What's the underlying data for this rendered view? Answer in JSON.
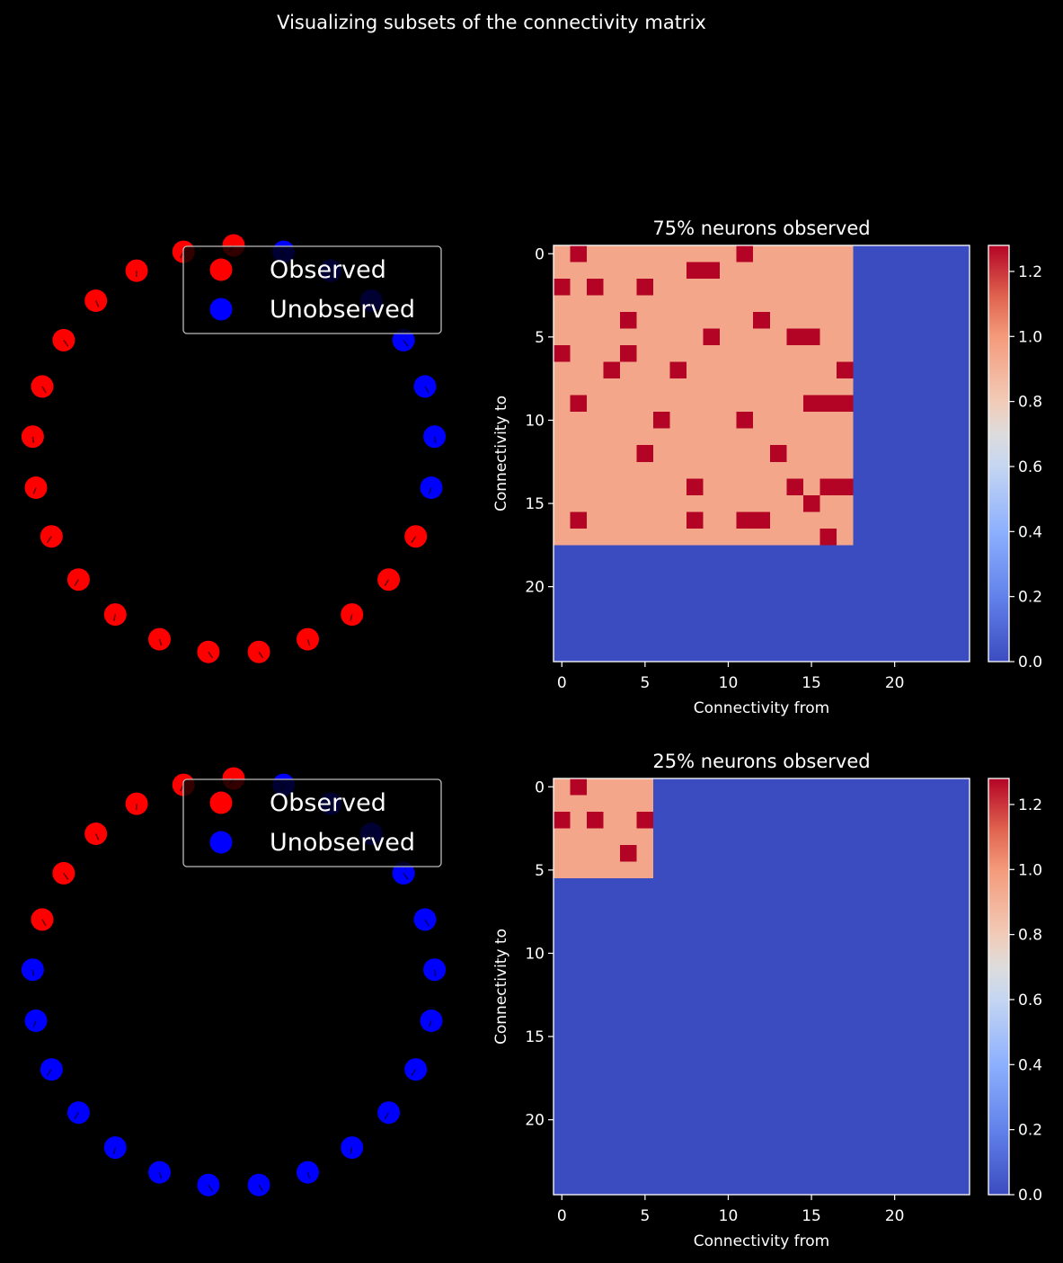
{
  "figure": {
    "title": "Visualizing subsets of the connectivity matrix",
    "background": "#000000"
  },
  "chart_data": [
    {
      "type": "scatter",
      "panel": "top-left",
      "description": "ring of 25 neurons, observed vs unobserved",
      "n_neurons": 25,
      "observed_count": 18,
      "legend": {
        "location": "top-right",
        "entries": [
          "Observed",
          "Unobserved"
        ]
      },
      "colors": {
        "observed": "#ff0000",
        "unobserved": "#0000ff"
      },
      "grid": false,
      "axes_visible": false
    },
    {
      "type": "heatmap",
      "panel": "top-right",
      "title": "75% neurons observed",
      "xlabel": "Connectivity from",
      "ylabel": "Connectivity to",
      "size": 25,
      "observed_count": 18,
      "xticks": [
        0,
        5,
        10,
        15,
        20
      ],
      "yticks": [
        0,
        5,
        10,
        15,
        20
      ],
      "colormap": "coolwarm",
      "value_range": [
        0,
        1.28
      ],
      "colorbar_ticks": [
        "0.0",
        "0.2",
        "0.4",
        "0.6",
        "0.8",
        "1.0",
        "1.2"
      ],
      "base_value": 0.95,
      "strong_value": 1.28,
      "strong_cells": [
        [
          0,
          1
        ],
        [
          0,
          11
        ],
        [
          1,
          8
        ],
        [
          1,
          9
        ],
        [
          2,
          0
        ],
        [
          2,
          2
        ],
        [
          2,
          5
        ],
        [
          4,
          4
        ],
        [
          4,
          12
        ],
        [
          5,
          9
        ],
        [
          5,
          14
        ],
        [
          5,
          15
        ],
        [
          6,
          0
        ],
        [
          6,
          4
        ],
        [
          7,
          3
        ],
        [
          7,
          7
        ],
        [
          7,
          17
        ],
        [
          9,
          1
        ],
        [
          9,
          15
        ],
        [
          9,
          16
        ],
        [
          9,
          17
        ],
        [
          10,
          6
        ],
        [
          10,
          11
        ],
        [
          12,
          5
        ],
        [
          12,
          13
        ],
        [
          14,
          8
        ],
        [
          14,
          14
        ],
        [
          14,
          16
        ],
        [
          14,
          17
        ],
        [
          15,
          15
        ],
        [
          16,
          1
        ],
        [
          16,
          8
        ],
        [
          16,
          11
        ],
        [
          16,
          12
        ],
        [
          17,
          16
        ]
      ]
    },
    {
      "type": "scatter",
      "panel": "bottom-left",
      "description": "ring of 25 neurons, observed vs unobserved",
      "n_neurons": 25,
      "observed_count": 6,
      "legend": {
        "location": "top-right",
        "entries": [
          "Observed",
          "Unobserved"
        ]
      },
      "colors": {
        "observed": "#ff0000",
        "unobserved": "#0000ff"
      },
      "grid": false,
      "axes_visible": false
    },
    {
      "type": "heatmap",
      "panel": "bottom-right",
      "title": "25% neurons observed",
      "xlabel": "Connectivity from",
      "ylabel": "Connectivity to",
      "size": 25,
      "observed_count": 6,
      "xticks": [
        0,
        5,
        10,
        15,
        20
      ],
      "yticks": [
        0,
        5,
        10,
        15,
        20
      ],
      "colormap": "coolwarm",
      "value_range": [
        0,
        1.28
      ],
      "colorbar_ticks": [
        "0.0",
        "0.2",
        "0.4",
        "0.6",
        "0.8",
        "1.0",
        "1.2"
      ],
      "base_value": 0.95,
      "strong_value": 1.28,
      "strong_cells": [
        [
          0,
          1
        ],
        [
          2,
          0
        ],
        [
          2,
          2
        ],
        [
          2,
          5
        ],
        [
          4,
          4
        ]
      ]
    }
  ]
}
